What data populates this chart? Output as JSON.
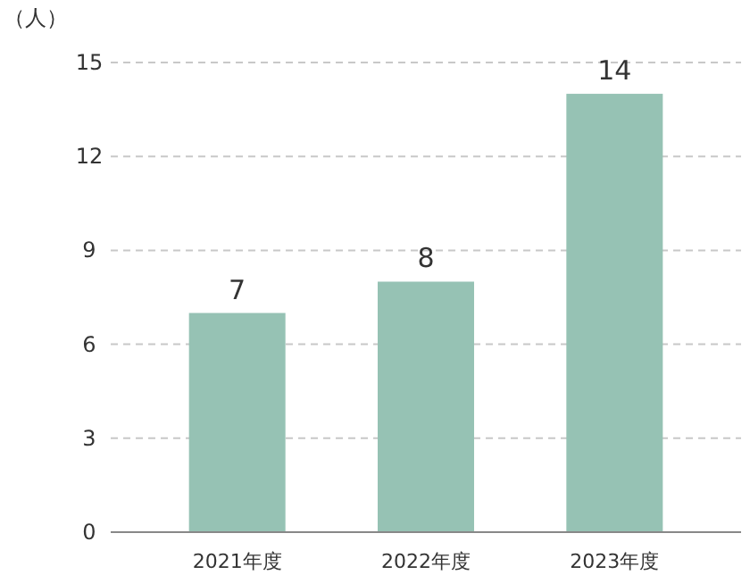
{
  "chart_data": {
    "type": "bar",
    "ylabel": "（人）",
    "categories": [
      "2021年度",
      "2022年度",
      "2023年度"
    ],
    "values": [
      7,
      8,
      14
    ],
    "color": "#96c2b4",
    "ylim": [
      0,
      15
    ],
    "yticks": [
      0,
      3,
      6,
      9,
      12,
      15
    ],
    "grid": "y",
    "data_labels": true
  }
}
